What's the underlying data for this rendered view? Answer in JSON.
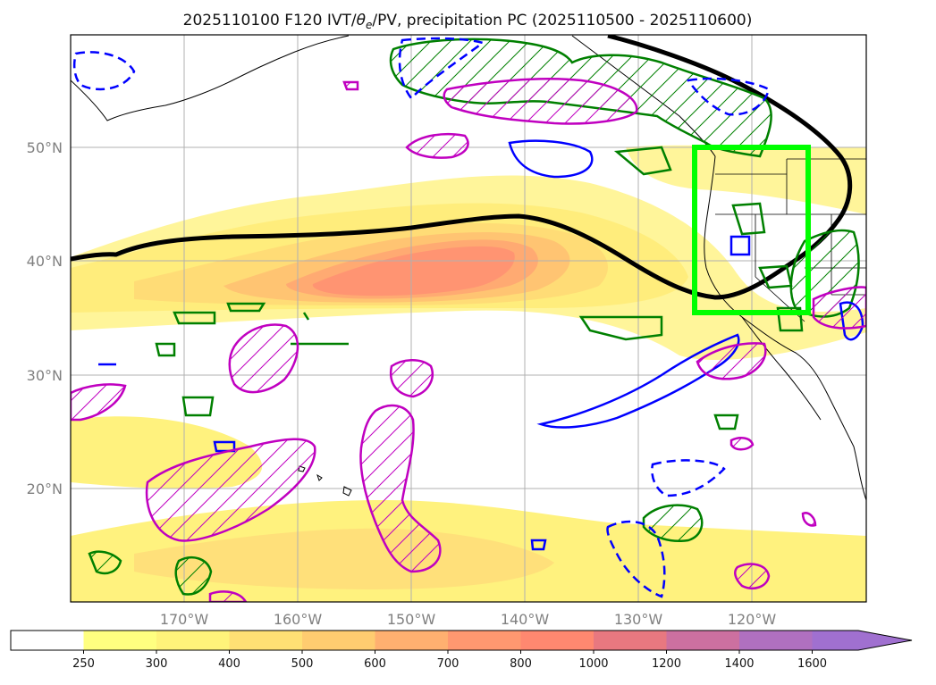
{
  "figure": {
    "title_main": "2025110100 F120 IVT/",
    "title_theta": "θ",
    "title_sub": "e",
    "title_rest": "/PV, precipitation PC (2025110500 - 2025110600)"
  },
  "map": {
    "projection": "PlateCarree",
    "lon_range": [
      -180,
      -110
    ],
    "lat_range": [
      10,
      60
    ],
    "lat_ticks": [
      "50°N",
      "40°N",
      "30°N",
      "20°N"
    ],
    "lon_ticks": [
      "170°W",
      "160°W",
      "150°W",
      "140°W",
      "130°W",
      "120°W"
    ],
    "highlight_box": {
      "lon": [
        -125,
        -115
      ],
      "lat": [
        35.5,
        50
      ],
      "color": "#00ff00"
    }
  },
  "colors": {
    "positive_contour": "#008000",
    "negative_contour": "#0000ff",
    "pv_contour": "#c000c0",
    "theta_contour": "#000000",
    "box": "#00ff00"
  },
  "colorbar": {
    "levels": [
      "250",
      "300",
      "400",
      "500",
      "600",
      "700",
      "800",
      "1000",
      "1200",
      "1400",
      "1600"
    ],
    "colors": [
      "#ffffff",
      "#ffff80",
      "#fff37a",
      "#ffe074",
      "#ffcc70",
      "#ffb070",
      "#ff9870",
      "#ff8870",
      "#e87880",
      "#cc70a0",
      "#b070c0",
      "#a070d0"
    ],
    "extend": "max"
  }
}
